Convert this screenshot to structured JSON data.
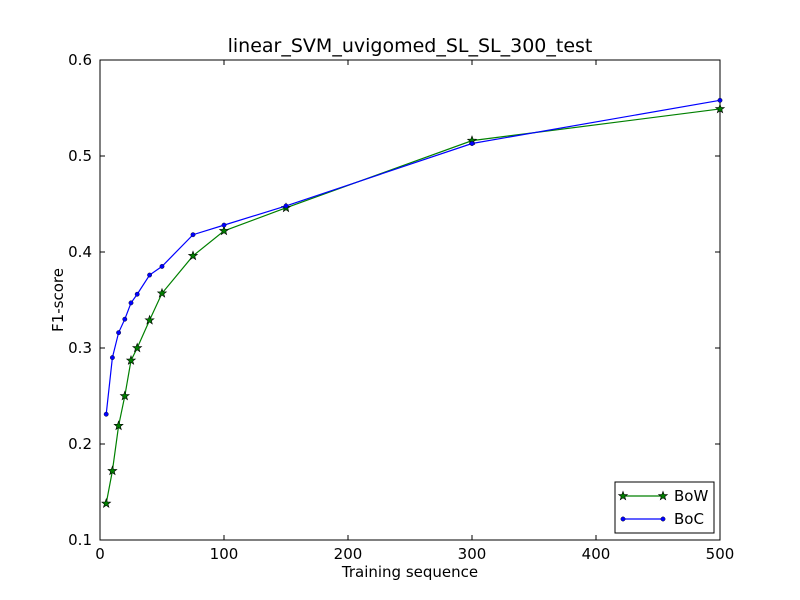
{
  "chart_data": {
    "type": "line",
    "title": "linear_SVM_uvigomed_SL_SL_300_test",
    "xlabel": "Training sequence",
    "ylabel": "F1-score",
    "xlim": [
      0,
      500
    ],
    "ylim": [
      0.1,
      0.6
    ],
    "xticks": [
      0,
      100,
      200,
      300,
      400,
      500
    ],
    "yticks": [
      0.1,
      0.2,
      0.3,
      0.4,
      0.5,
      0.6
    ],
    "xtick_labels": [
      "0",
      "100",
      "200",
      "300",
      "400",
      "500"
    ],
    "ytick_labels": [
      "0.1",
      "0.2",
      "0.3",
      "0.4",
      "0.5",
      "0.6"
    ],
    "grid": false,
    "legend_position": "bottom-right",
    "series": [
      {
        "name": "BoW",
        "color": "#008000",
        "marker": "star",
        "x": [
          5,
          10,
          15,
          20,
          25,
          30,
          40,
          50,
          75,
          100,
          150,
          300,
          500
        ],
        "y": [
          0.138,
          0.172,
          0.219,
          0.25,
          0.287,
          0.3,
          0.329,
          0.357,
          0.396,
          0.422,
          0.446,
          0.516,
          0.549
        ]
      },
      {
        "name": "BoC",
        "color": "#0000ff",
        "marker": "dot",
        "x": [
          5,
          10,
          15,
          20,
          25,
          30,
          40,
          50,
          75,
          100,
          150,
          300,
          500
        ],
        "y": [
          0.231,
          0.29,
          0.316,
          0.33,
          0.347,
          0.356,
          0.376,
          0.385,
          0.418,
          0.428,
          0.448,
          0.513,
          0.558
        ]
      }
    ]
  }
}
